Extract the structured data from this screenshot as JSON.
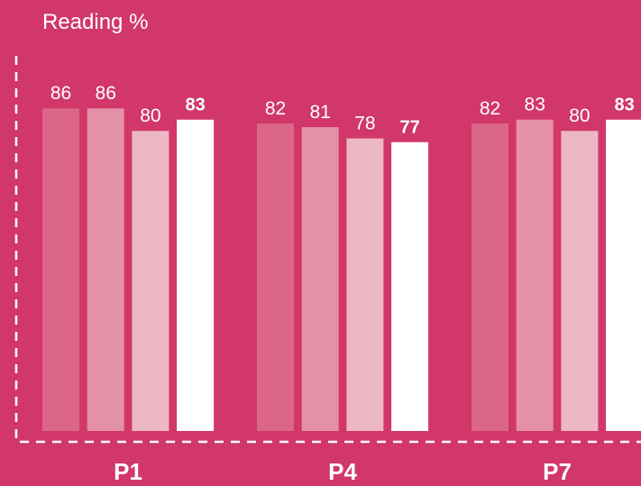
{
  "chart_data": {
    "type": "bar",
    "title": "Reading %",
    "categories": [
      "P1",
      "P4",
      "P7"
    ],
    "series": [
      {
        "color": "#dc6687",
        "values": [
          86,
          82,
          82
        ]
      },
      {
        "color": "#e490a6",
        "values": [
          86,
          81,
          83
        ]
      },
      {
        "color": "#eeb7c4",
        "values": [
          80,
          78,
          80
        ]
      },
      {
        "color": "#ffffff",
        "values": [
          83,
          77,
          83
        ]
      }
    ],
    "ylim": [
      0,
      100
    ]
  }
}
